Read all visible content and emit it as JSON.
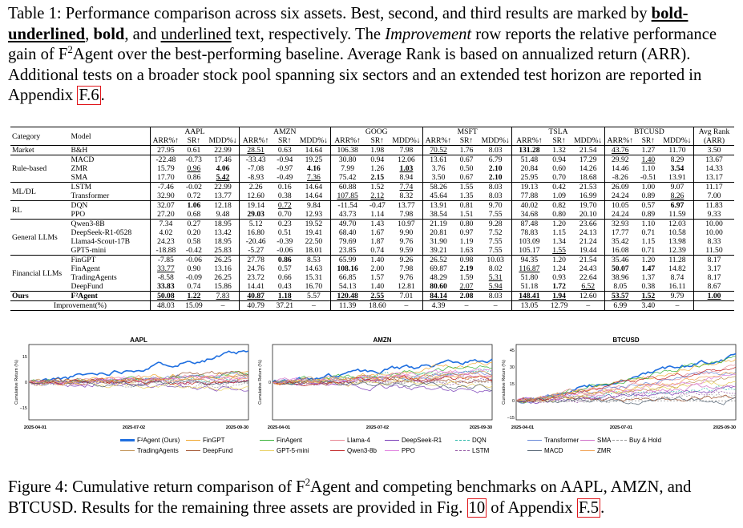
{
  "caption_top": {
    "p1": "Table 1: Performance comparison across six assets. Best, second, and third results are marked by ",
    "bold_ul": "bold-underlined",
    "p2": ", ",
    "bold": "bold",
    "p3": ", and ",
    "ul": "underlined",
    "p4": " text, respectively. The ",
    "italic": "Improvement",
    "p5": " row reports the relative performance gain of F",
    "sup": "2",
    "p6": "Agent over the best-performing baseline. Average Rank is based on annualized return (ARR). Additional tests on a broader stock pool spanning six sectors and an extended test horizon are reported in Appendix ",
    "ref": "F.6",
    "p7": "."
  },
  "table": {
    "header": {
      "category": "Category",
      "model": "Model",
      "assets": [
        "AAPL",
        "AMZN",
        "GOOG",
        "MSFT",
        "TSLA",
        "BTCUSD"
      ],
      "metrics": [
        "ARR%↑",
        "SR↑",
        "MDD%↓"
      ],
      "avg_rank": "Avg Rank",
      "avg_rank_sub": "(ARR)"
    },
    "groups": [
      {
        "category": "Market",
        "rows": [
          {
            "model": "B&H",
            "cells": [
              "27.95",
              "0.61",
              "22.99",
              "28.51",
              "0.63",
              "14.64",
              "106.38",
              "1.98",
              "7.98",
              "70.52",
              "1.76",
              "8.03",
              "131.28",
              "1.32",
              "21.54",
              "43.76",
              "1.27",
              "11.70",
              "3.50"
            ]
          }
        ]
      },
      {
        "category": "Rule-based",
        "rows": [
          {
            "model": "MACD",
            "cells": [
              "-22.48",
              "-0.73",
              "17.46",
              "-33.43",
              "-0.94",
              "19.25",
              "30.80",
              "0.94",
              "12.06",
              "13.61",
              "0.67",
              "6.79",
              "51.48",
              "0.94",
              "17.29",
              "29.92",
              "1.40",
              "8.29",
              "13.67"
            ]
          },
          {
            "model": "ZMR",
            "cells": [
              "15.79",
              "0.96",
              "4.06",
              "-7.08",
              "-0.97",
              "4.16",
              "7.99",
              "1.26",
              "1.03",
              "3.76",
              "0.50",
              "2.10",
              "20.84",
              "0.60",
              "14.26",
              "14.46",
              "1.10",
              "3.54",
              "14.33"
            ]
          },
          {
            "model": "SMA",
            "cells": [
              "17.70",
              "0.86",
              "5.42",
              "-8.93",
              "-0.49",
              "7.36",
              "75.42",
              "2.15",
              "8.94",
              "3.50",
              "0.67",
              "2.10",
              "25.95",
              "0.70",
              "18.68",
              "-8.26",
              "-0.51",
              "13.91",
              "13.17"
            ]
          }
        ]
      },
      {
        "category": "ML/DL",
        "rows": [
          {
            "model": "LSTM",
            "cells": [
              "-7.46",
              "-0.02",
              "22.99",
              "2.26",
              "0.16",
              "14.64",
              "60.88",
              "1.52",
              "7.74",
              "58.26",
              "1.55",
              "8.03",
              "19.13",
              "0.42",
              "21.53",
              "26.09",
              "1.00",
              "9.07",
              "11.17"
            ]
          },
          {
            "model": "Transformer",
            "cells": [
              "32.90",
              "0.72",
              "13.77",
              "12.60",
              "0.38",
              "14.64",
              "107.85",
              "2.12",
              "8.32",
              "45.64",
              "1.35",
              "8.03",
              "77.88",
              "1.09",
              "16.99",
              "24.24",
              "0.89",
              "8.26",
              "7.00"
            ]
          }
        ]
      },
      {
        "category": "RL",
        "rows": [
          {
            "model": "DQN",
            "cells": [
              "32.07",
              "1.06",
              "12.18",
              "19.14",
              "0.72",
              "9.84",
              "-11.54",
              "-0.47",
              "13.77",
              "13.91",
              "0.81",
              "9.70",
              "40.02",
              "0.82",
              "19.70",
              "10.05",
              "0.57",
              "6.97",
              "11.83"
            ]
          },
          {
            "model": "PPO",
            "cells": [
              "27.20",
              "0.68",
              "9.48",
              "29.03",
              "0.70",
              "12.93",
              "43.73",
              "1.14",
              "7.98",
              "38.54",
              "1.51",
              "7.55",
              "34.68",
              "0.80",
              "20.10",
              "24.24",
              "0.89",
              "11.59",
              "9.33"
            ]
          }
        ]
      },
      {
        "category": "General LLMs",
        "rows": [
          {
            "model": "Qwen3-8B",
            "cells": [
              "7.34",
              "0.27",
              "18.95",
              "5.12",
              "0.23",
              "19.52",
              "49.70",
              "1.43",
              "10.97",
              "21.19",
              "0.80",
              "9.28",
              "87.48",
              "1.20",
              "23.66",
              "32.93",
              "1.10",
              "12.03",
              "10.00"
            ]
          },
          {
            "model": "DeepSeek-R1-0528",
            "cells": [
              "4.02",
              "0.20",
              "13.42",
              "16.80",
              "0.51",
              "19.41",
              "68.40",
              "1.67",
              "9.90",
              "20.81",
              "0.97",
              "7.52",
              "78.83",
              "1.15",
              "24.13",
              "17.77",
              "0.71",
              "10.58",
              "10.00"
            ]
          },
          {
            "model": "Llama4-Scout-17B",
            "cells": [
              "24.23",
              "0.58",
              "18.95",
              "-20.46",
              "-0.39",
              "22.50",
              "79.69",
              "1.87",
              "9.76",
              "31.90",
              "1.19",
              "7.55",
              "103.09",
              "1.34",
              "21.24",
              "35.42",
              "1.15",
              "13.98",
              "8.33"
            ]
          },
          {
            "model": "GPT5-mini",
            "cells": [
              "-18.88",
              "-0.42",
              "25.83",
              "-5.27",
              "-0.06",
              "18.01",
              "23.85",
              "0.74",
              "9.59",
              "39.21",
              "1.63",
              "7.55",
              "105.17",
              "1.55",
              "19.44",
              "16.08",
              "0.71",
              "12.39",
              "11.50"
            ]
          }
        ]
      },
      {
        "category": "Financial LLMs",
        "rows": [
          {
            "model": "FinGPT",
            "cells": [
              "-7.85",
              "-0.06",
              "26.25",
              "27.78",
              "0.86",
              "8.53",
              "65.99",
              "1.40",
              "9.26",
              "26.52",
              "0.98",
              "10.03",
              "94.35",
              "1.20",
              "21.54",
              "35.46",
              "1.20",
              "11.28",
              "8.17"
            ]
          },
          {
            "model": "FinAgent",
            "cells": [
              "33.77",
              "0.90",
              "13.16",
              "24.76",
              "0.57",
              "14.63",
              "108.16",
              "2.00",
              "7.98",
              "69.87",
              "2.19",
              "8.02",
              "116.87",
              "1.24",
              "24.43",
              "50.07",
              "1.47",
              "14.82",
              "3.17"
            ]
          },
          {
            "model": "TradingAgents",
            "cells": [
              "-8.58",
              "-0.09",
              "26.25",
              "23.72",
              "0.66",
              "15.31",
              "66.85",
              "1.57",
              "9.76",
              "48.29",
              "1.59",
              "5.31",
              "51.80",
              "0.93",
              "22.64",
              "38.96",
              "1.37",
              "8.74",
              "8.17"
            ]
          },
          {
            "model": "DeepFund",
            "cells": [
              "33.83",
              "0.74",
              "15.86",
              "14.41",
              "0.43",
              "16.70",
              "54.13",
              "1.40",
              "12.81",
              "80.60",
              "2.07",
              "5.94",
              "51.18",
              "1.72",
              "6.52",
              "8.05",
              "0.38",
              "16.11",
              "8.67"
            ]
          }
        ]
      }
    ],
    "ours": {
      "category": "Ours",
      "model": "F²Agent",
      "cells": [
        "50.08",
        "1.22",
        "7.83",
        "40.87",
        "1.18",
        "5.57",
        "120.48",
        "2.55",
        "7.01",
        "84.14",
        "2.08",
        "8.03",
        "148.41",
        "1.94",
        "12.60",
        "53.57",
        "1.52",
        "9.79",
        "1.00"
      ]
    },
    "improvement": {
      "label": "Improvement(%)",
      "cells": [
        "48.03",
        "15.09",
        "–",
        "40.79",
        "37.21",
        "–",
        "11.39",
        "18.60",
        "–",
        "4.39",
        "–",
        "–",
        "13.05",
        "12.79",
        "–",
        "6.99",
        "3.40",
        "–",
        ""
      ]
    }
  },
  "charts": [
    {
      "title": "AAPL",
      "ylabel": "Cumulative Return (%)",
      "yticks": [
        "15",
        "0",
        "−15"
      ],
      "xticks": [
        "2025-04-01",
        "2025-07-02",
        "2025-09-30"
      ],
      "y_domain": [
        -22,
        22
      ]
    },
    {
      "title": "AMZN",
      "ylabel": "Cumulative Return (%)",
      "yticks": [
        "0"
      ],
      "xticks": [
        "2025-04-01",
        "2025-07-02",
        "2025-09-30"
      ],
      "y_domain": [
        -22,
        22
      ]
    },
    {
      "title": "BTCUSD",
      "ylabel": "Cumulative Return (%)",
      "yticks": [
        "45",
        "30",
        "15",
        "0",
        "−15"
      ],
      "xticks": [
        "2025-04-01",
        "2025-07-01",
        "2025-09-30"
      ],
      "y_domain": [
        -17,
        50
      ]
    }
  ],
  "legend": [
    {
      "label": "F²Agent (Ours)",
      "color": "#1f6fe0",
      "style": "bold"
    },
    {
      "label": "FinGPT",
      "color": "#f0a830",
      "style": "solid"
    },
    {
      "label": "FinAgent",
      "color": "#3cb43c",
      "style": "solid"
    },
    {
      "label": "Llama-4",
      "color": "#e88a96",
      "style": "solid"
    },
    {
      "label": "DeepSeek-R1",
      "color": "#7a3fb8",
      "style": "solid"
    },
    {
      "label": "DQN",
      "color": "#28b8a8",
      "style": "dashed"
    },
    {
      "label": "Transformer",
      "color": "#6a8ad8",
      "style": "solid"
    },
    {
      "label": "SMA",
      "color": "#d070c8",
      "style": "solid"
    },
    {
      "label": "Buy & Hold",
      "color": "#999999",
      "style": "dashed"
    },
    {
      "label": "TradingAgents",
      "color": "#c09050",
      "style": "solid"
    },
    {
      "label": "DeepFund",
      "color": "#a0522d",
      "style": "solid"
    },
    {
      "label": "GPT-5-mini",
      "color": "#e8d060",
      "style": "solid"
    },
    {
      "label": "Qwen3-8b",
      "color": "#c02020",
      "style": "solid"
    },
    {
      "label": "PPO",
      "color": "#e080e0",
      "style": "solid"
    },
    {
      "label": "LSTM",
      "color": "#9050a0",
      "style": "dashed"
    },
    {
      "label": "MACD",
      "color": "#506070",
      "style": "solid"
    },
    {
      "label": "ZMR",
      "color": "#f0a050",
      "style": "solid"
    }
  ],
  "caption_bottom": {
    "p1": "Figure 4: Cumulative return comparison of F",
    "sup": "2",
    "p2": "Agent and competing benchmarks on AAPL, AMZN, and BTCUSD. Results for the remaining three assets are provided in Fig. ",
    "ref1": "10",
    "p3": " of Appendix ",
    "ref2": "F.5",
    "p4": "."
  }
}
